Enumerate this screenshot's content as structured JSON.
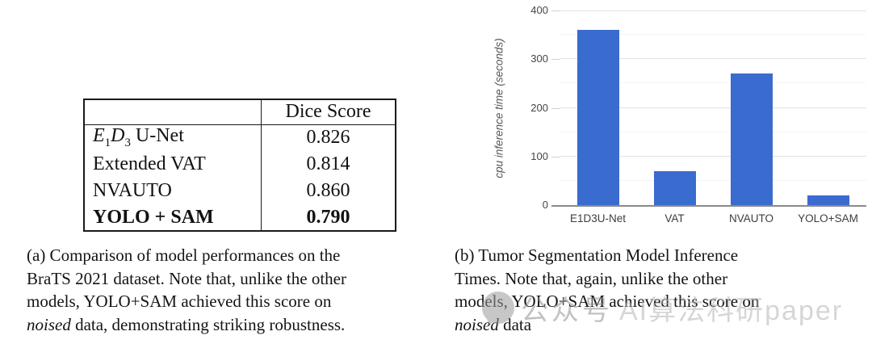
{
  "table": {
    "header": [
      "",
      "Dice Score"
    ],
    "rows": [
      {
        "parts": {
          "e": "E",
          "s1": "1",
          "d": "D",
          "s2": "3",
          "rest": " U-Net"
        },
        "dice": "0.826"
      },
      {
        "label": "Extended VAT",
        "dice": "0.814"
      },
      {
        "label": "NVAUTO",
        "dice": "0.860"
      },
      {
        "label": "YOLO + SAM",
        "dice": "0.790"
      }
    ]
  },
  "caption_a": {
    "lines": [
      "(a) Comparison of model performances on the",
      "BraTS 2021 dataset. Note that, unlike the other",
      "models, YOLO+SAM achieved this score on"
    ],
    "italic_word": "noised",
    "last_line_rest": " data, demonstrating striking robustness."
  },
  "caption_b": {
    "lines": [
      "(b) Tumor Segmentation Model Inference",
      "Times. Note that, again, unlike the other",
      "models, YOLO+SAM achieved this score on"
    ],
    "italic_word": "noised",
    "last_line_rest": " data"
  },
  "watermark": {
    "prefix": "公众号",
    "text": "AI算法科研paper"
  },
  "chart_data": {
    "type": "bar",
    "title": "",
    "categories": [
      "E1D3U-Net",
      "VAT",
      "NVAUTO",
      "YOLO+SAM"
    ],
    "values": [
      360,
      70,
      270,
      20
    ],
    "xlabel": "",
    "ylabel": "cpu inference time (seconds)",
    "ylim": [
      0,
      400
    ],
    "yticks": [
      0,
      100,
      200,
      300,
      400
    ],
    "grid": {
      "major_step": 100,
      "minor_step": 50,
      "major_color": "#e2e2e2",
      "minor_color": "#f4f4f4"
    },
    "bar_color": "#3a6bcf",
    "axis_color": "#8a8a8a",
    "legend": "none"
  }
}
